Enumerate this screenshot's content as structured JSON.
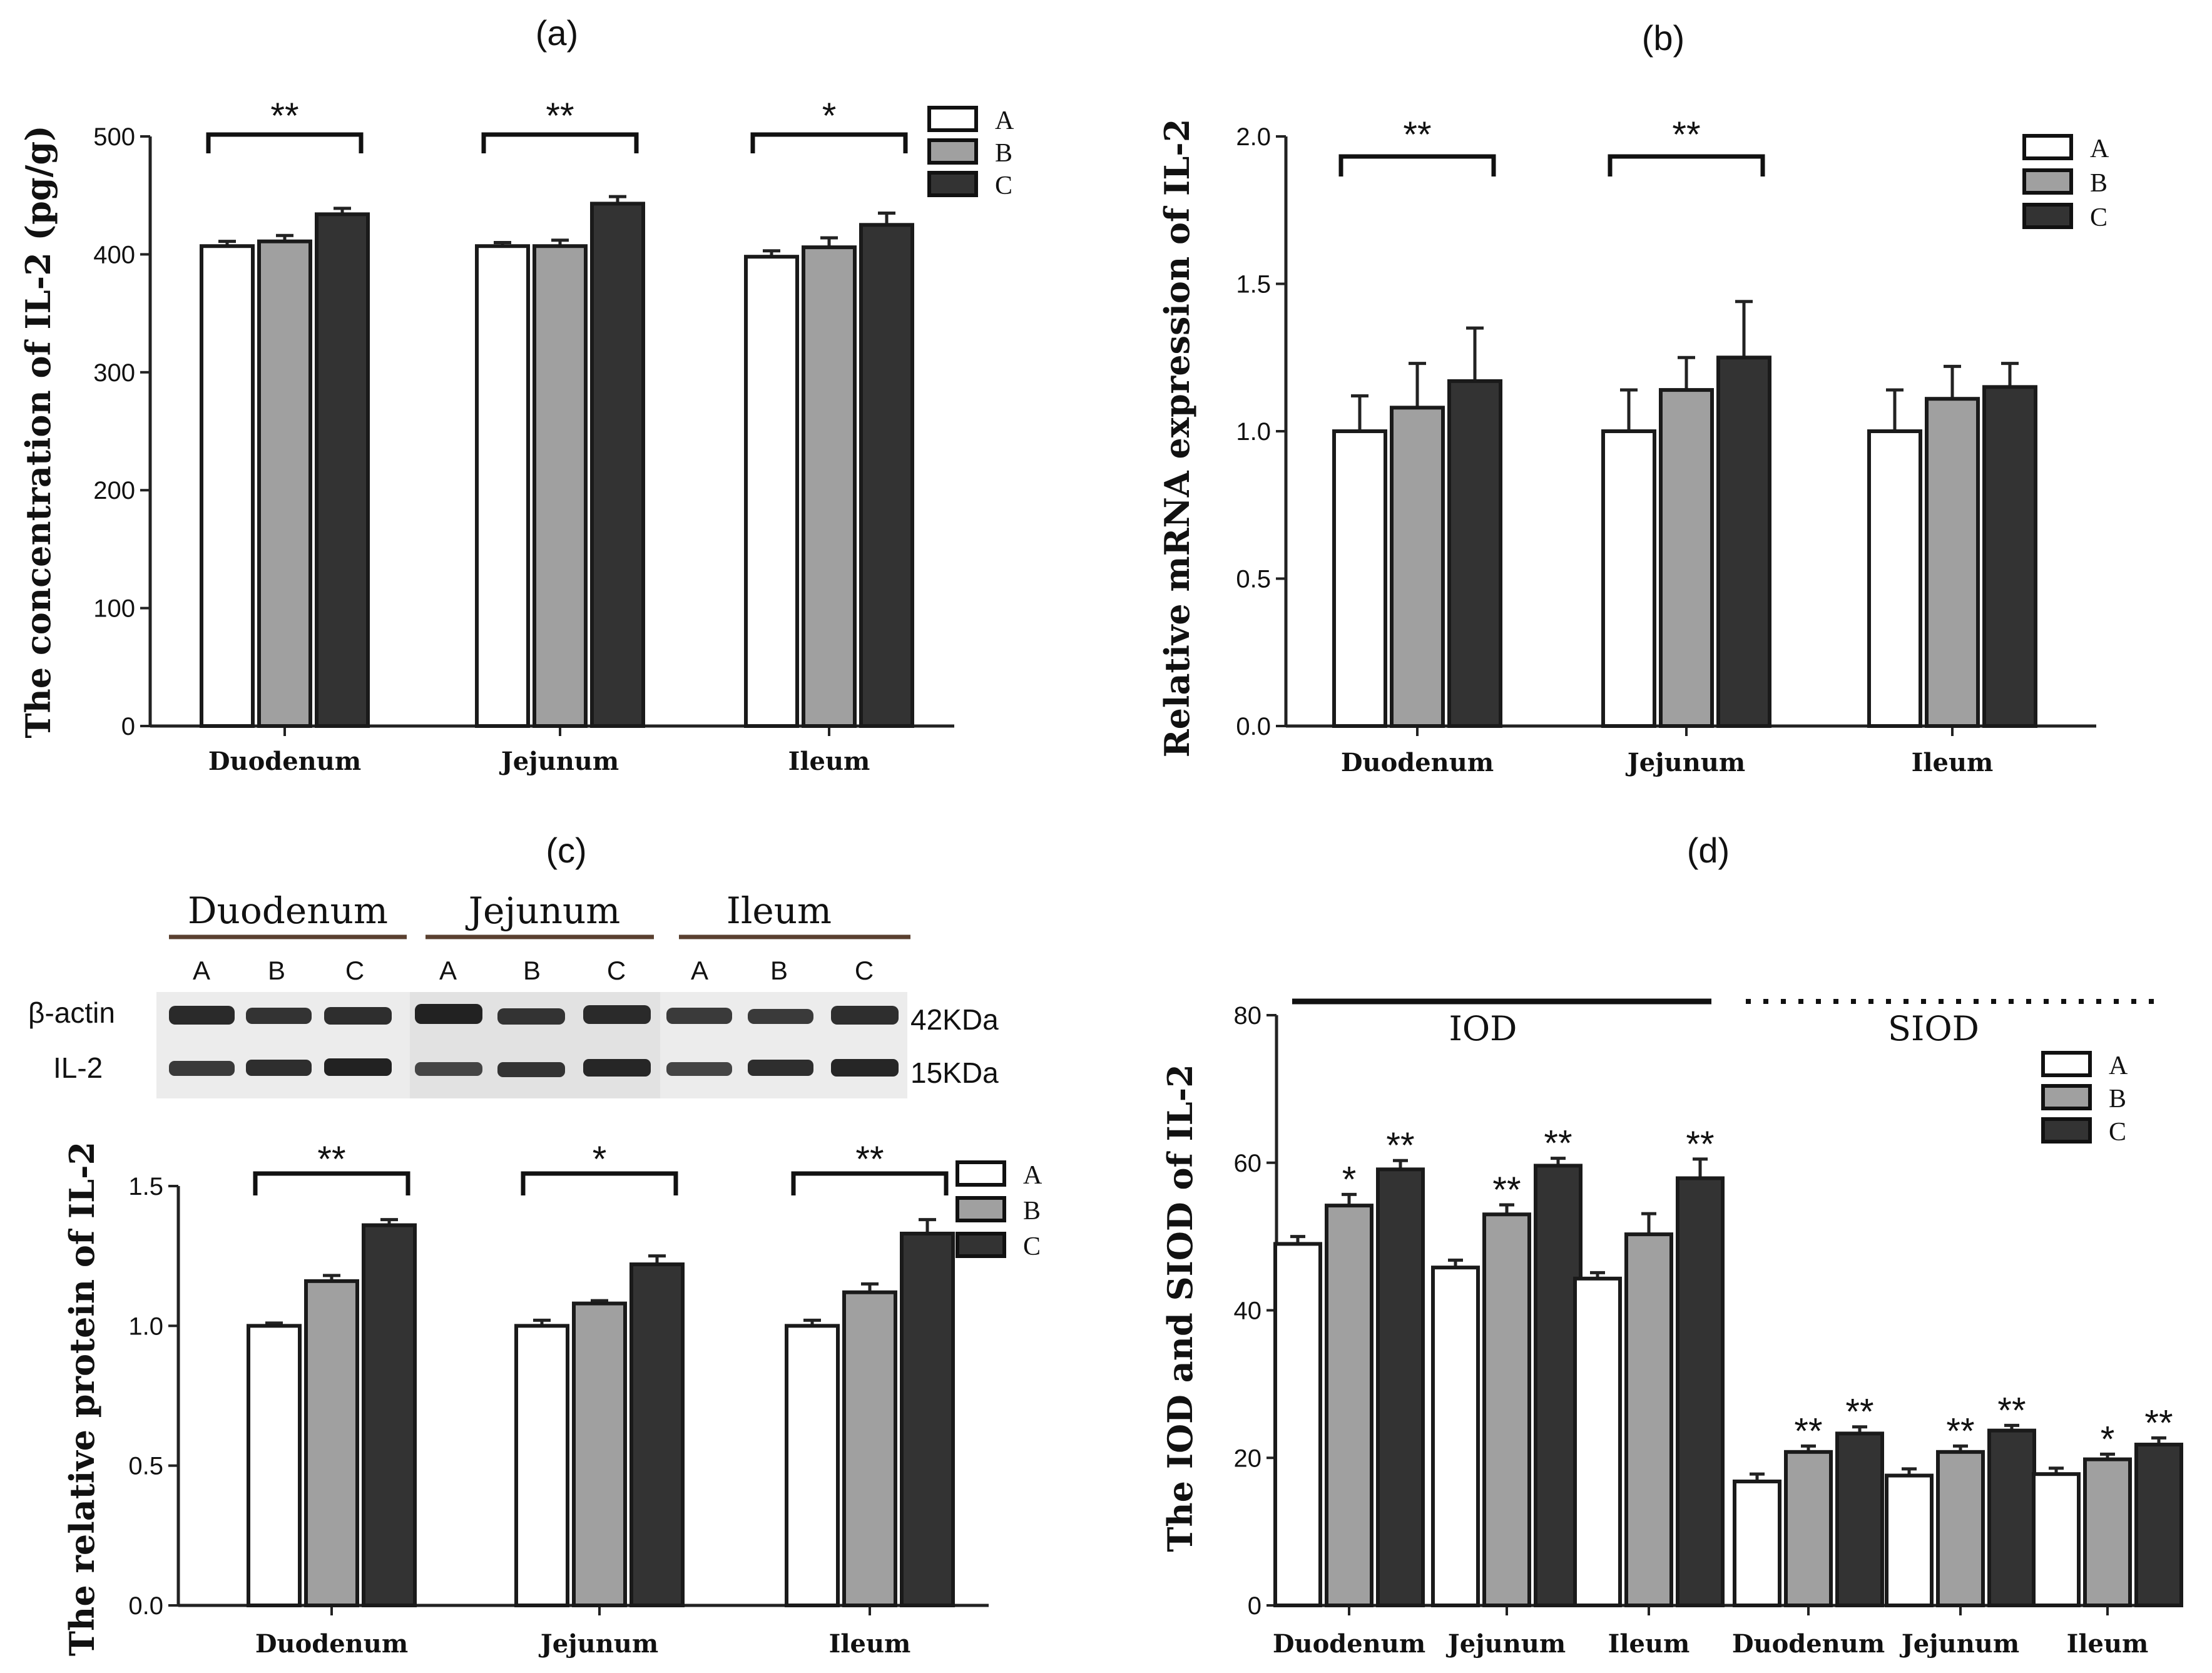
{
  "palette": {
    "A": "#ffffff",
    "B": "#a0a0a0",
    "C": "#333333",
    "axis": "#222222"
  },
  "legend": [
    "A",
    "B",
    "C"
  ],
  "chart_data": [
    {
      "id": "a",
      "type": "bar",
      "title": "(a)",
      "ylabel": "The concentration of IL-2 (pg/g)",
      "ylim": [
        0,
        500
      ],
      "yticks": [
        0,
        100,
        200,
        300,
        400,
        500
      ],
      "categories": [
        "Duodenum",
        "Jejunum",
        "Ileum"
      ],
      "series": [
        {
          "name": "A",
          "values": [
            407,
            407,
            398
          ],
          "errors": [
            4,
            3,
            5
          ]
        },
        {
          "name": "B",
          "values": [
            411,
            407,
            406
          ],
          "errors": [
            5,
            5,
            8
          ]
        },
        {
          "name": "C",
          "values": [
            434,
            443,
            425
          ],
          "errors": [
            5,
            6,
            10
          ]
        }
      ],
      "significance": [
        "**",
        "**",
        "*"
      ],
      "point_stars": []
    },
    {
      "id": "b",
      "type": "bar",
      "title": "(b)",
      "ylabel": "Relative mRNA expression of IL-2",
      "ylim": [
        0,
        2.0
      ],
      "yticks": [
        0.0,
        0.5,
        1.0,
        1.5,
        2.0
      ],
      "decimals": 1,
      "categories": [
        "Duodenum",
        "Jejunum",
        "Ileum"
      ],
      "series": [
        {
          "name": "A",
          "values": [
            1.0,
            1.0,
            1.0
          ],
          "errors": [
            0.12,
            0.14,
            0.14
          ]
        },
        {
          "name": "B",
          "values": [
            1.08,
            1.14,
            1.11
          ],
          "errors": [
            0.15,
            0.11,
            0.11
          ]
        },
        {
          "name": "C",
          "values": [
            1.17,
            1.25,
            1.15
          ],
          "errors": [
            0.18,
            0.19,
            0.08
          ]
        }
      ],
      "significance": [
        "**",
        "**",
        ""
      ],
      "point_stars": []
    },
    {
      "id": "c",
      "type": "bar",
      "title": "(c)",
      "ylabel": "The relative protein of IL-2",
      "ylim": [
        0,
        1.5
      ],
      "yticks": [
        0.0,
        0.5,
        1.0,
        1.5
      ],
      "decimals": 1,
      "categories": [
        "Duodenum",
        "Jejunum",
        "Ileum"
      ],
      "series": [
        {
          "name": "A",
          "values": [
            1.0,
            1.0,
            1.0
          ],
          "errors": [
            0.01,
            0.02,
            0.02
          ]
        },
        {
          "name": "B",
          "values": [
            1.16,
            1.08,
            1.12
          ],
          "errors": [
            0.02,
            0.01,
            0.03
          ]
        },
        {
          "name": "C",
          "values": [
            1.36,
            1.22,
            1.33
          ],
          "errors": [
            0.02,
            0.03,
            0.05
          ]
        }
      ],
      "significance": [
        "**",
        "*",
        "**"
      ],
      "point_stars": []
    },
    {
      "id": "d",
      "type": "bar",
      "title": "(d)",
      "ylabel": "The IOD and SIOD of IL-2",
      "ylim": [
        0,
        80
      ],
      "yticks": [
        0,
        20,
        40,
        60,
        80
      ],
      "categories": [
        "Duodenum",
        "Jejunum",
        "Ileum",
        "Duodenum",
        "Jejunum",
        "Ileum"
      ],
      "groups": [
        "IOD",
        "SIOD"
      ],
      "series": [
        {
          "name": "A",
          "values": [
            49,
            45.8,
            44.3,
            16.8,
            17.6,
            17.8
          ],
          "errors": [
            1.0,
            1.0,
            0.8,
            1.0,
            0.9,
            0.8
          ]
        },
        {
          "name": "B",
          "values": [
            54.2,
            53,
            50.3,
            20.8,
            20.8,
            19.8
          ],
          "errors": [
            1.5,
            1.3,
            2.8,
            0.8,
            0.8,
            0.7
          ]
        },
        {
          "name": "C",
          "values": [
            59.1,
            59.6,
            57.9,
            23.3,
            23.7,
            21.8
          ],
          "errors": [
            1.2,
            1.0,
            2.6,
            0.9,
            0.7,
            0.9
          ]
        }
      ],
      "significance": [],
      "point_stars": [
        [
          "",
          "*",
          "**"
        ],
        [
          "",
          "**",
          "**"
        ],
        [
          "",
          "",
          "**"
        ],
        [
          "",
          "**",
          "**"
        ],
        [
          "",
          "**",
          "**"
        ],
        [
          "",
          "*",
          "**"
        ]
      ]
    }
  ],
  "western_blot": {
    "tissues": [
      "Duodenum",
      "Jejunum",
      "Ileum"
    ],
    "lanes": [
      "A",
      "B",
      "C",
      "A",
      "B",
      "C",
      "A",
      "B",
      "C"
    ],
    "bands": [
      {
        "label": "β-actin",
        "size": "42KDa"
      },
      {
        "label": "IL-2",
        "size": "15KDa"
      }
    ]
  }
}
